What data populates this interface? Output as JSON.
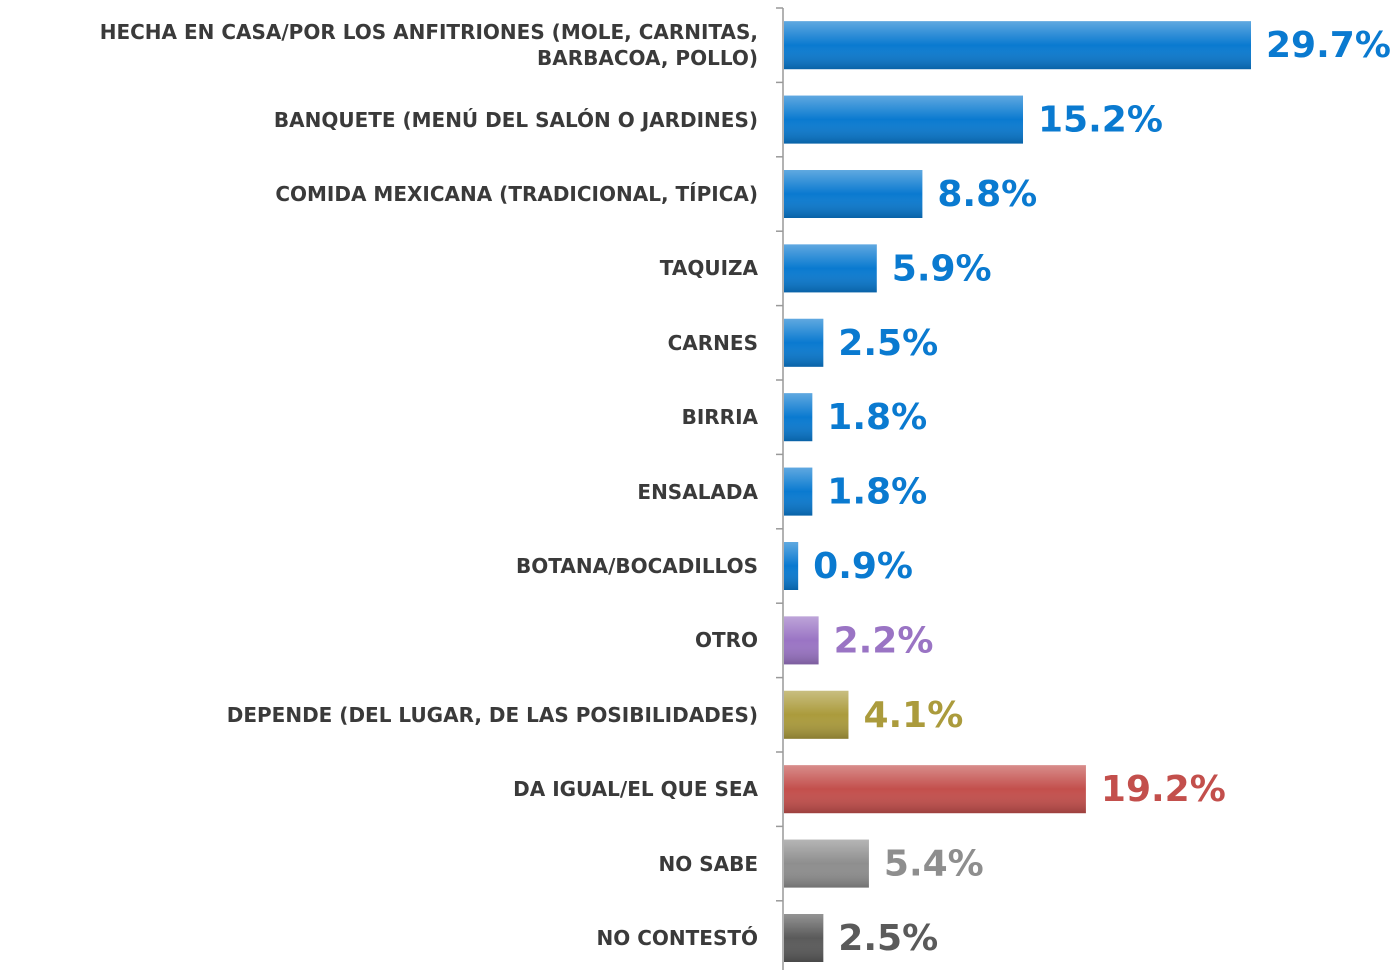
{
  "chart_data": {
    "type": "bar",
    "orientation": "horizontal",
    "categories": [
      "HECHA EN CASA/POR LOS ANFITRIONES (MOLE, CARNITAS, BARBACOA, POLLO)",
      "BANQUETE (MENÚ DEL SALÓN O JARDINES)",
      "COMIDA MEXICANA (TRADICIONAL, TÍPICA)",
      "TAQUIZA",
      "CARNES",
      "BIRRIA",
      "ENSALADA",
      "BOTANA/BOCADILLOS",
      "OTRO",
      "DEPENDE (DEL LUGAR, DE LAS POSIBILIDADES)",
      "DA IGUAL/EL QUE SEA",
      "NO SABE",
      "NO CONTESTÓ"
    ],
    "values": [
      29.7,
      15.2,
      8.8,
      5.9,
      2.5,
      1.8,
      1.8,
      0.9,
      2.2,
      4.1,
      19.2,
      5.4,
      2.5
    ],
    "value_labels": [
      "29.7%",
      "15.2%",
      "8.8%",
      "5.9%",
      "2.5%",
      "1.8%",
      "1.8%",
      "0.9%",
      "2.2%",
      "4.1%",
      "19.2%",
      "5.4%",
      "2.5%"
    ],
    "colors": [
      "#0a7ad0",
      "#0a7ad0",
      "#0a7ad0",
      "#0a7ad0",
      "#0a7ad0",
      "#0a7ad0",
      "#0a7ad0",
      "#0a7ad0",
      "#9a74c4",
      "#ab9b3c",
      "#c34f4c",
      "#8e8e8e",
      "#5a5a5a"
    ]
  }
}
